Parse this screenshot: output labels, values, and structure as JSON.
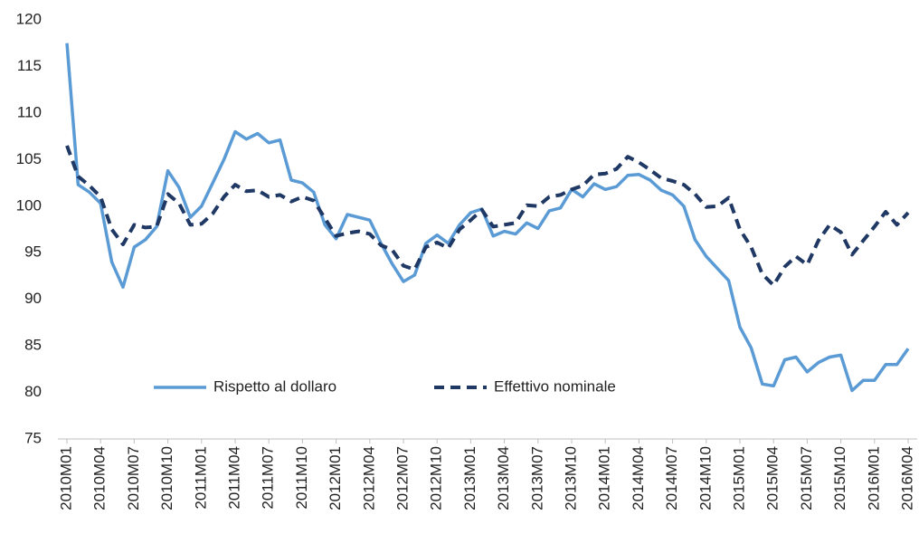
{
  "chart_data": {
    "type": "line",
    "categories": [
      "2010M01",
      null,
      null,
      "2010M04",
      null,
      null,
      "2010M07",
      null,
      null,
      "2010M10",
      null,
      null,
      "2011M01",
      null,
      null,
      "2011M04",
      null,
      null,
      "2011M07",
      null,
      null,
      "2011M10",
      null,
      null,
      "2012M01",
      null,
      null,
      "2012M04",
      null,
      null,
      "2012M07",
      null,
      null,
      "2012M10",
      null,
      null,
      "2013M01",
      null,
      null,
      "2013M04",
      null,
      null,
      "2013M07",
      null,
      null,
      "2013M10",
      null,
      null,
      "2014M01",
      null,
      null,
      "2014M04",
      null,
      null,
      "2014M07",
      null,
      null,
      "2014M10",
      null,
      null,
      "2015M01",
      null,
      null,
      "2015M04",
      null,
      null,
      "2015M07",
      null,
      null,
      "2015M10",
      null,
      null,
      "2016M01",
      null,
      null,
      "2016M04"
    ],
    "series": [
      {
        "name": "Rispetto al dollaro",
        "color": "#5b9bd5",
        "line_style": "solid",
        "values": [
          117.5,
          102.3,
          101.5,
          100.3,
          94,
          91.3,
          95.6,
          96.4,
          97.8,
          103.8,
          102,
          98.8,
          100,
          102.5,
          105,
          108,
          107.2,
          107.8,
          106.8,
          107.1,
          102.8,
          102.5,
          101.5,
          98,
          96.5,
          99.1,
          98.8,
          98.5,
          96,
          93.8,
          91.9,
          92.6,
          96,
          96.9,
          96,
          98,
          99.3,
          99.7,
          96.8,
          97.3,
          97,
          98.2,
          97.6,
          99.5,
          99.8,
          101.8,
          101,
          102.4,
          101.8,
          102.1,
          103.3,
          103.4,
          102.8,
          101.7,
          101.2,
          100,
          96.4,
          94.6,
          93.3,
          92,
          87,
          84.8,
          80.9,
          80.7,
          83.5,
          83.8,
          82.2,
          83.2,
          83.8,
          84,
          80.2,
          81.3,
          81.3,
          83,
          83,
          84.7
        ]
      },
      {
        "name": "Effettivo nominale",
        "color": "#1f3864",
        "line_style": "dashed",
        "values": [
          106.5,
          103.2,
          102.2,
          101,
          97.5,
          95.9,
          98,
          97.7,
          97.8,
          101.3,
          100.3,
          98,
          98.1,
          99.2,
          101,
          102.3,
          101.6,
          101.7,
          101,
          101.2,
          100.5,
          101,
          100.6,
          98.7,
          96.8,
          97.1,
          97.3,
          97,
          95.8,
          95.3,
          93.6,
          93.2,
          95.6,
          96.1,
          95.5,
          97.5,
          98.5,
          99.6,
          97.8,
          98,
          98.2,
          100.1,
          100,
          101,
          101.2,
          101.8,
          102.2,
          103.4,
          103.5,
          104,
          105.3,
          104.7,
          103.9,
          103,
          102.7,
          102.3,
          101.3,
          99.9,
          100,
          100.9,
          97.5,
          95.6,
          92.7,
          91.5,
          93.5,
          94.6,
          93.7,
          96.3,
          98,
          97.2,
          94.8,
          96.3,
          97.8,
          99.4,
          98,
          99.3
        ]
      }
    ],
    "ylim": [
      75,
      120
    ],
    "yticks": [
      75,
      80,
      85,
      90,
      95,
      100,
      105,
      110,
      115,
      120
    ],
    "grid": false,
    "legend_position": "lower center"
  }
}
